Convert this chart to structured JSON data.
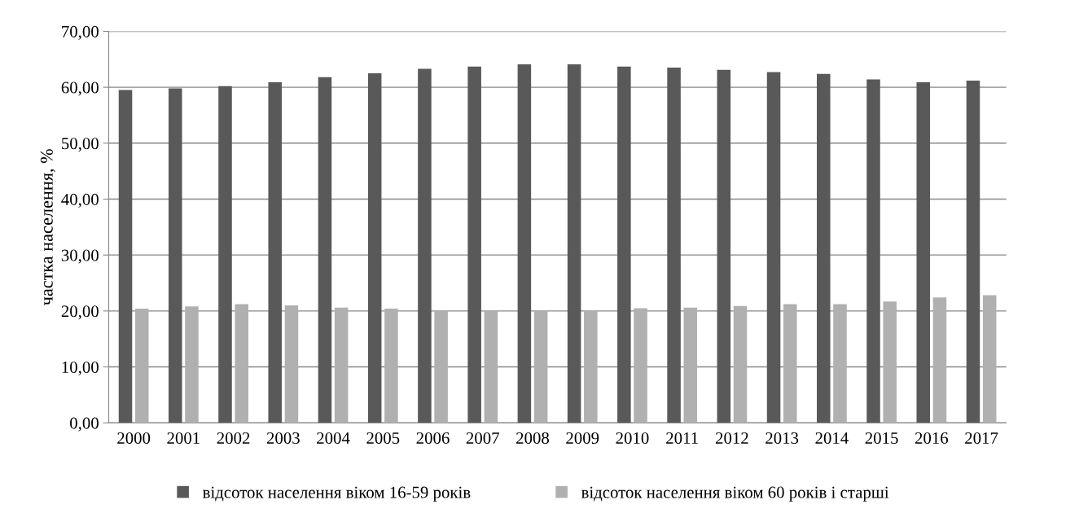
{
  "chart_data": {
    "type": "bar",
    "ylabel": "частка населення, %",
    "categories": [
      "2000",
      "2001",
      "2002",
      "2003",
      "2004",
      "2005",
      "2006",
      "2007",
      "2008",
      "2009",
      "2010",
      "2011",
      "2012",
      "2013",
      "2014",
      "2015",
      "2016",
      "2017"
    ],
    "series": [
      {
        "name": "відсоток населення віком 16-59 років",
        "color": "#595959",
        "values": [
          59.5,
          59.8,
          60.2,
          60.9,
          61.8,
          62.5,
          63.3,
          63.7,
          64.1,
          64.1,
          63.7,
          63.5,
          63.1,
          62.7,
          62.4,
          61.4,
          60.9,
          61.2
        ]
      },
      {
        "name": "відсоток населення віком 60 років і старші",
        "color": "#b0b0b0",
        "values": [
          20.4,
          20.8,
          21.2,
          21.0,
          20.6,
          20.4,
          20.0,
          20.0,
          20.0,
          20.1,
          20.5,
          20.6,
          20.9,
          21.2,
          21.2,
          21.7,
          22.4,
          22.8
        ]
      }
    ],
    "ylim": [
      0,
      70
    ],
    "yticks": [
      {
        "value": 0,
        "label": "0,00"
      },
      {
        "value": 10,
        "label": "10,00"
      },
      {
        "value": 20,
        "label": "20,00"
      },
      {
        "value": 30,
        "label": "30,00"
      },
      {
        "value": 40,
        "label": "40,00"
      },
      {
        "value": 50,
        "label": "50,00"
      },
      {
        "value": 60,
        "label": "60,00"
      },
      {
        "value": 70,
        "label": "70,00"
      }
    ],
    "grid": "y",
    "legend": "bottom"
  }
}
